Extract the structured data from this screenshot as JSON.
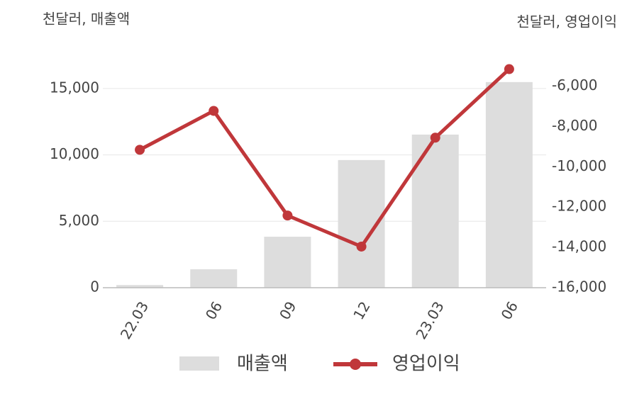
{
  "chart_data": {
    "type": "bar-line",
    "ylabel": "천달러, 매출액",
    "y2label": "천달러, 영업이익",
    "categories": [
      "22.03",
      "06",
      "09",
      "12",
      "23.03",
      "06"
    ],
    "series": [
      {
        "name": "매출액",
        "type": "bar",
        "color": "#dddddd",
        "values": [
          200,
          1390,
          3840,
          9610,
          11530,
          15480
        ]
      },
      {
        "name": "영업이익",
        "type": "line",
        "axis": "y2",
        "color": "#c0373a",
        "values": [
          -9160,
          -7230,
          -12420,
          -13960,
          -8560,
          -5160
        ]
      }
    ],
    "ylim": [
      0,
      16700
    ],
    "yticks": [
      0,
      {
        "value": 5000,
        "label": "5,000"
      },
      {
        "value": 10000,
        "label": "10,000"
      },
      {
        "value": 15000,
        "label": "15,000"
      }
    ],
    "y2lim": [
      -16000,
      -5000
    ],
    "y2ticks": [
      {
        "value": -16000,
        "label": "-16,000"
      },
      {
        "value": -14000,
        "label": "-14,000"
      },
      {
        "value": -12000,
        "label": "-12,000"
      },
      {
        "value": -10000,
        "label": "-10,000"
      },
      {
        "value": -8000,
        "label": "-8,000"
      },
      {
        "value": -6000,
        "label": "-6,000"
      }
    ],
    "grid": true
  }
}
